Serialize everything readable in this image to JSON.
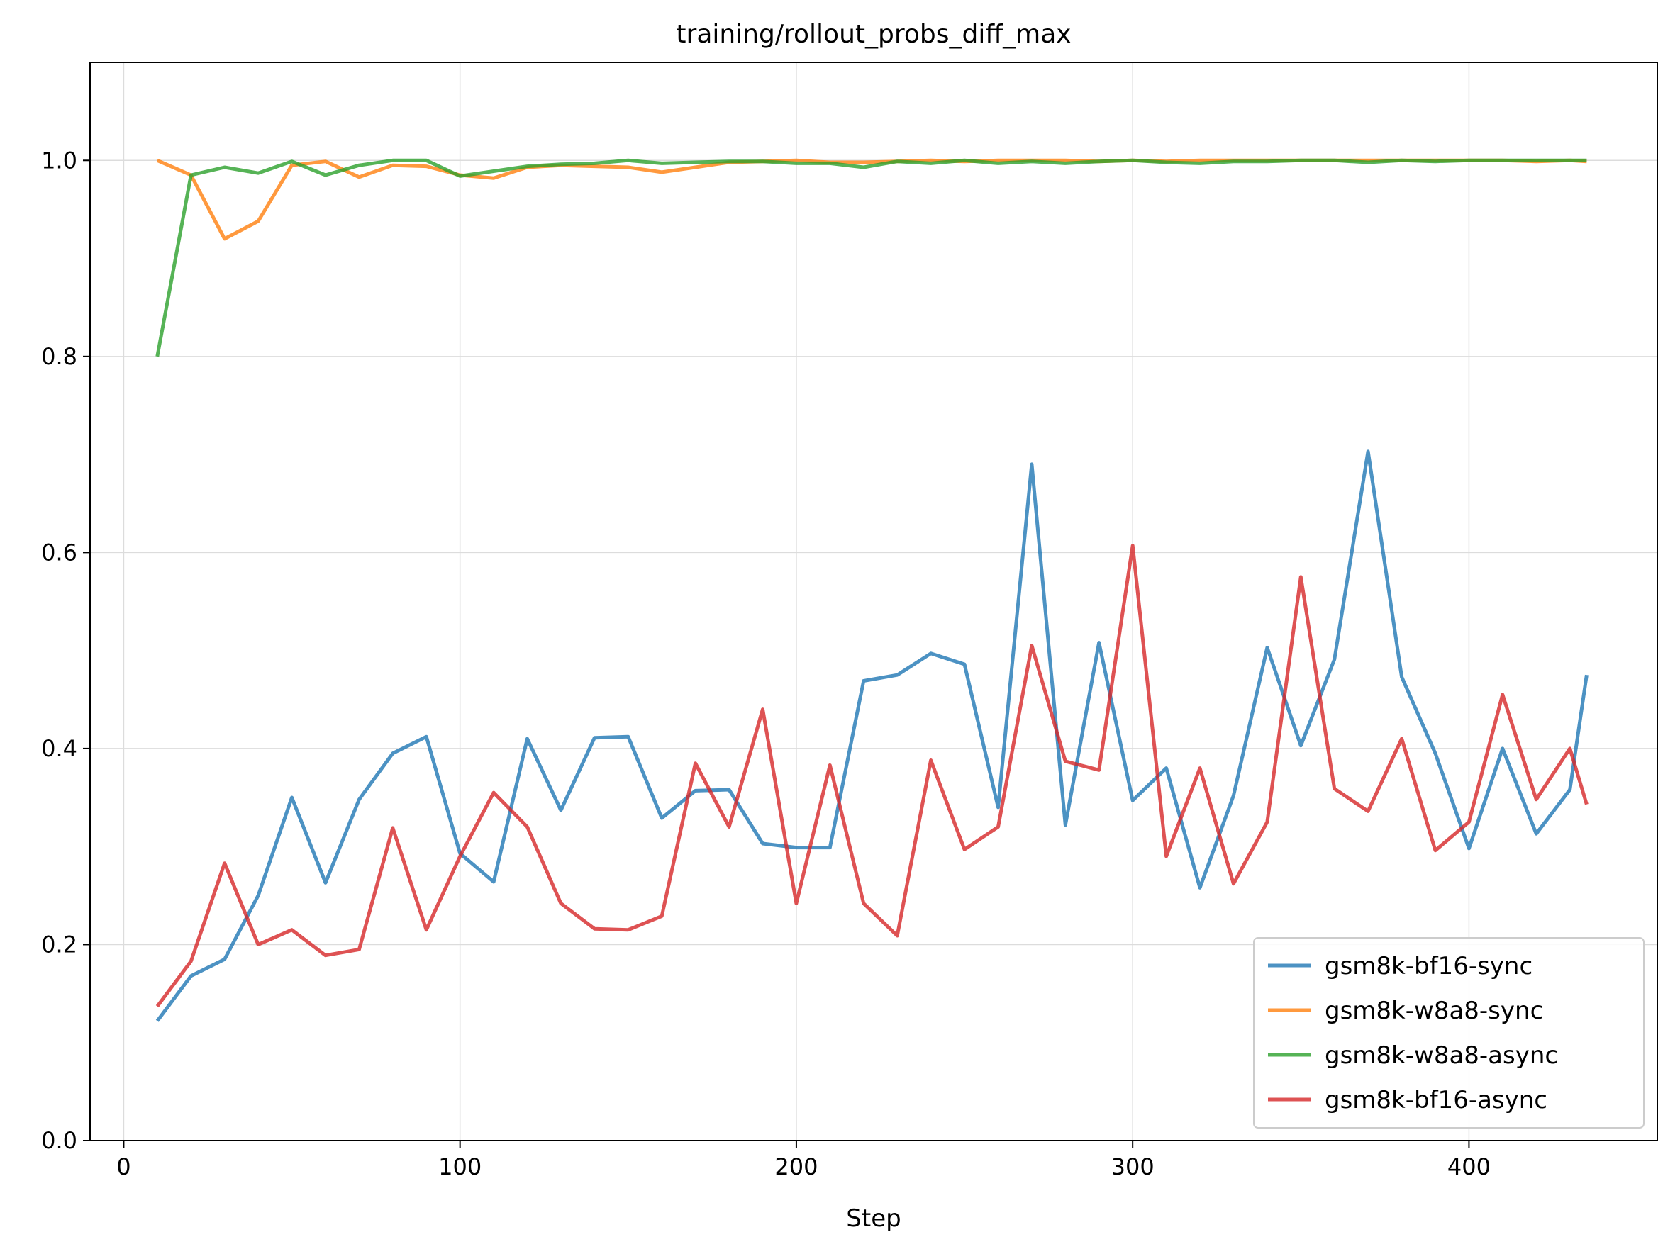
{
  "chart_data": {
    "type": "line",
    "title": "training/rollout_probs_diff_max",
    "xlabel": "Step",
    "ylabel": "",
    "xlim": [
      -10,
      456
    ],
    "ylim": [
      0.0,
      1.1
    ],
    "grid": true,
    "legend_position": "lower-right",
    "x_ticks": [
      0,
      100,
      200,
      300,
      400
    ],
    "x_tick_labels": [
      "0",
      "100",
      "200",
      "300",
      "400"
    ],
    "y_ticks": [
      0.0,
      0.2,
      0.4,
      0.6,
      0.8,
      1.0
    ],
    "y_tick_labels": [
      "0.0",
      "0.2",
      "0.4",
      "0.6",
      "0.8",
      "1.0"
    ],
    "x": [
      10,
      20,
      30,
      40,
      50,
      60,
      70,
      80,
      90,
      100,
      110,
      120,
      130,
      140,
      150,
      160,
      170,
      180,
      190,
      200,
      210,
      220,
      230,
      240,
      250,
      260,
      270,
      280,
      290,
      300,
      310,
      320,
      330,
      340,
      350,
      360,
      370,
      380,
      390,
      400,
      410,
      420,
      430,
      435
    ],
    "series": [
      {
        "name": "gsm8k-bf16-sync",
        "color": "#1f77b4",
        "values": [
          0.122,
          0.168,
          0.185,
          0.25,
          0.35,
          0.263,
          0.348,
          0.395,
          0.412,
          0.293,
          0.264,
          0.41,
          0.337,
          0.411,
          0.412,
          0.329,
          0.357,
          0.358,
          0.303,
          0.299,
          0.299,
          0.469,
          0.475,
          0.497,
          0.486,
          0.34,
          0.69,
          0.322,
          0.508,
          0.347,
          0.38,
          0.258,
          0.352,
          0.503,
          0.403,
          0.491,
          0.703,
          0.473,
          0.395,
          0.298,
          0.4,
          0.313,
          0.358,
          0.475
        ]
      },
      {
        "name": "gsm8k-w8a8-sync",
        "color": "#ff7f0e",
        "values": [
          1.0,
          0.985,
          0.92,
          0.938,
          0.995,
          0.999,
          0.983,
          0.995,
          0.994,
          0.985,
          0.982,
          0.993,
          0.995,
          0.994,
          0.993,
          0.988,
          0.993,
          0.998,
          0.999,
          1.0,
          0.998,
          0.998,
          0.999,
          1.0,
          0.999,
          1.0,
          1.0,
          1.0,
          0.999,
          1.0,
          0.999,
          1.0,
          1.0,
          1.0,
          1.0,
          1.0,
          1.0,
          1.0,
          1.0,
          1.0,
          1.0,
          0.999,
          1.0,
          0.999
        ]
      },
      {
        "name": "gsm8k-w8a8-async",
        "color": "#2ca02c",
        "values": [
          0.8,
          0.985,
          0.993,
          0.987,
          0.999,
          0.985,
          0.995,
          1.0,
          1.0,
          0.984,
          0.989,
          0.994,
          0.996,
          0.997,
          1.0,
          0.997,
          0.998,
          0.999,
          0.999,
          0.997,
          0.997,
          0.993,
          0.999,
          0.997,
          1.0,
          0.997,
          0.999,
          0.997,
          0.999,
          1.0,
          0.998,
          0.997,
          0.999,
          0.999,
          1.0,
          1.0,
          0.998,
          1.0,
          0.999,
          1.0,
          1.0,
          1.0,
          1.0,
          1.0
        ]
      },
      {
        "name": "gsm8k-bf16-async",
        "color": "#d62728",
        "values": [
          0.137,
          0.183,
          0.283,
          0.2,
          0.215,
          0.189,
          0.195,
          0.319,
          0.215,
          0.29,
          0.355,
          0.32,
          0.242,
          0.216,
          0.215,
          0.229,
          0.385,
          0.32,
          0.44,
          0.242,
          0.383,
          0.242,
          0.209,
          0.388,
          0.297,
          0.32,
          0.505,
          0.387,
          0.378,
          0.607,
          0.29,
          0.38,
          0.262,
          0.325,
          0.575,
          0.359,
          0.336,
          0.41,
          0.296,
          0.325,
          0.455,
          0.348,
          0.4,
          0.343
        ]
      }
    ]
  }
}
